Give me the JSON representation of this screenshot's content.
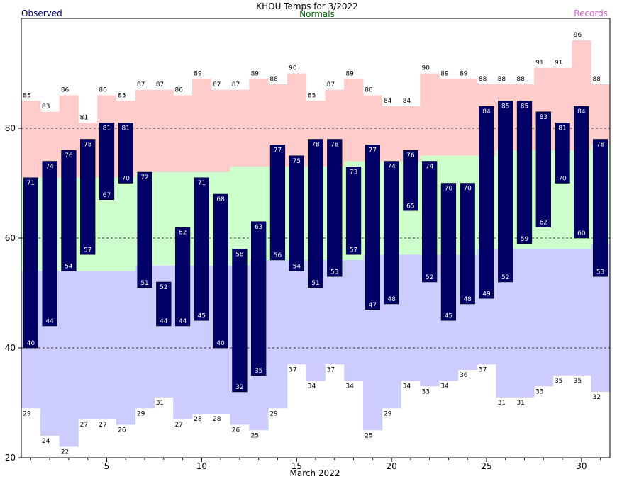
{
  "chart_data": {
    "type": "bar",
    "title": "KHOU Temps for 3/2022",
    "xlabel": "March 2022",
    "ylabel": "",
    "xlim": [
      1,
      31
    ],
    "ylim": [
      20,
      100
    ],
    "x_ticks": [
      5,
      10,
      15,
      20,
      25,
      30
    ],
    "y_ticks": [
      20,
      40,
      60,
      80
    ],
    "gridlines_y": [
      40,
      60,
      80
    ],
    "legend": {
      "observed": {
        "label": "Observed",
        "color": "#000066"
      },
      "normals": {
        "label": "Normals",
        "color": "#006600"
      },
      "records": {
        "label": "Records",
        "color": "#cc66cc"
      }
    },
    "days": [
      1,
      2,
      3,
      4,
      5,
      6,
      7,
      8,
      9,
      10,
      11,
      12,
      13,
      14,
      15,
      16,
      17,
      18,
      19,
      20,
      21,
      22,
      23,
      24,
      25,
      26,
      27,
      28,
      29,
      30,
      31
    ],
    "series": [
      {
        "name": "Observed",
        "color": "#000066",
        "high": [
          71,
          74,
          76,
          78,
          81,
          81,
          72,
          52,
          62,
          71,
          68,
          58,
          63,
          77,
          75,
          78,
          78,
          73,
          77,
          74,
          76,
          74,
          70,
          70,
          84,
          85,
          85,
          83,
          81,
          84,
          78
        ],
        "low": [
          40,
          44,
          54,
          57,
          67,
          70,
          51,
          44,
          44,
          45,
          40,
          32,
          35,
          56,
          54,
          51,
          53,
          57,
          47,
          48,
          65,
          52,
          45,
          48,
          49,
          52,
          59,
          62,
          70,
          60,
          53
        ]
      },
      {
        "name": "Normals",
        "color": "#ccffcc",
        "high": [
          71,
          71,
          71,
          71,
          71,
          71,
          72,
          72,
          72,
          72,
          72,
          73,
          73,
          73,
          73,
          73,
          73,
          74,
          74,
          74,
          74,
          75,
          75,
          75,
          75,
          76,
          76,
          76,
          76,
          76,
          77
        ],
        "low": [
          54,
          54,
          54,
          54,
          54,
          54,
          55,
          55,
          55,
          55,
          55,
          55,
          56,
          56,
          56,
          56,
          56,
          56,
          57,
          57,
          57,
          57,
          57,
          57,
          58,
          58,
          58,
          58,
          58,
          58,
          59
        ]
      },
      {
        "name": "Records",
        "color": "#ffcccc",
        "high": [
          85,
          83,
          86,
          81,
          86,
          85,
          87,
          87,
          86,
          89,
          87,
          87,
          89,
          88,
          90,
          85,
          87,
          89,
          86,
          84,
          84,
          90,
          89,
          89,
          88,
          88,
          88,
          91,
          91,
          96,
          88
        ],
        "low": [
          29,
          24,
          22,
          27,
          27,
          26,
          29,
          31,
          27,
          28,
          28,
          26,
          25,
          29,
          37,
          34,
          37,
          34,
          25,
          29,
          34,
          33,
          34,
          36,
          37,
          31,
          31,
          33,
          35,
          35,
          32
        ]
      }
    ]
  }
}
